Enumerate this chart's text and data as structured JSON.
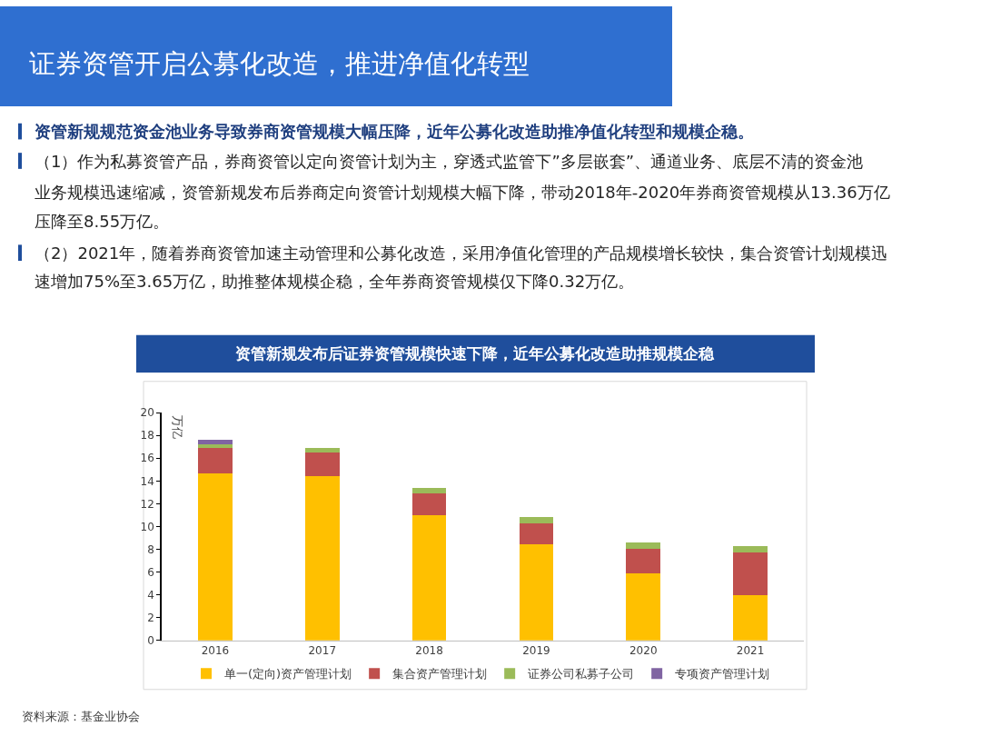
{
  "chart_data": {
    "type": "bar",
    "stacked": true,
    "title": "证券资管开启公募化改造，推进净值化转型",
    "subtitle": "资管新规发布后证券资管规模快速下降，近年公募化改造助推规模企稳",
    "ylabel": "万亿",
    "annotations": [
      "资管新规规范资金池业务导致券商资管规模大幅压降，近年公募化改造助推净值化转型和规模企稳。",
      "（1）作为私募资管产品，券商资管以定向资管计划为主，穿透式监管下”多层嵌套”、通道业务、底层不清的资金池",
      "业务规模迅速缩减，资管新规发布后券商定向资管计划规模大幅下降，带动2018年-2020年券商资管规模从13.36万亿",
      "压降至8.55万亿。",
      "（2）2021年，随着券商资管加速主动管理和公募化改造，采用净值化管理的产品规模增长较快，集合资管计划规模迅",
      "速增加75%至3.65万亿，助推整体规模企稳，全年券商资管规模仅下降0.32万亿。",
      "资料来源：基金业协会"
    ],
    "categories": [
      "2016",
      "2017",
      "2018",
      "2019",
      "2020",
      "2021"
    ],
    "series": [
      {
        "name": "单一(定向)资产管理计划",
        "color": "#ffc000",
        "values": [
          14.7,
          14.4,
          11.0,
          8.4,
          5.9,
          4.0
        ]
      },
      {
        "name": "集合资产管理计划",
        "color": "#c0504d",
        "values": [
          2.2,
          2.1,
          1.9,
          1.9,
          2.1,
          3.7
        ]
      },
      {
        "name": "证券公司私募子公司",
        "color": "#9bbb59",
        "values": [
          0.3,
          0.4,
          0.5,
          0.5,
          0.6,
          0.6
        ]
      },
      {
        "name": "专项资产管理计划",
        "color": "#8064a2",
        "values": [
          0.4,
          0,
          0,
          0,
          0,
          0
        ]
      }
    ],
    "ylim": [
      0,
      20
    ],
    "yticks": [
      0,
      2,
      4,
      6,
      8,
      10,
      12,
      14,
      16,
      18,
      20
    ],
    "legend": "bottom"
  }
}
